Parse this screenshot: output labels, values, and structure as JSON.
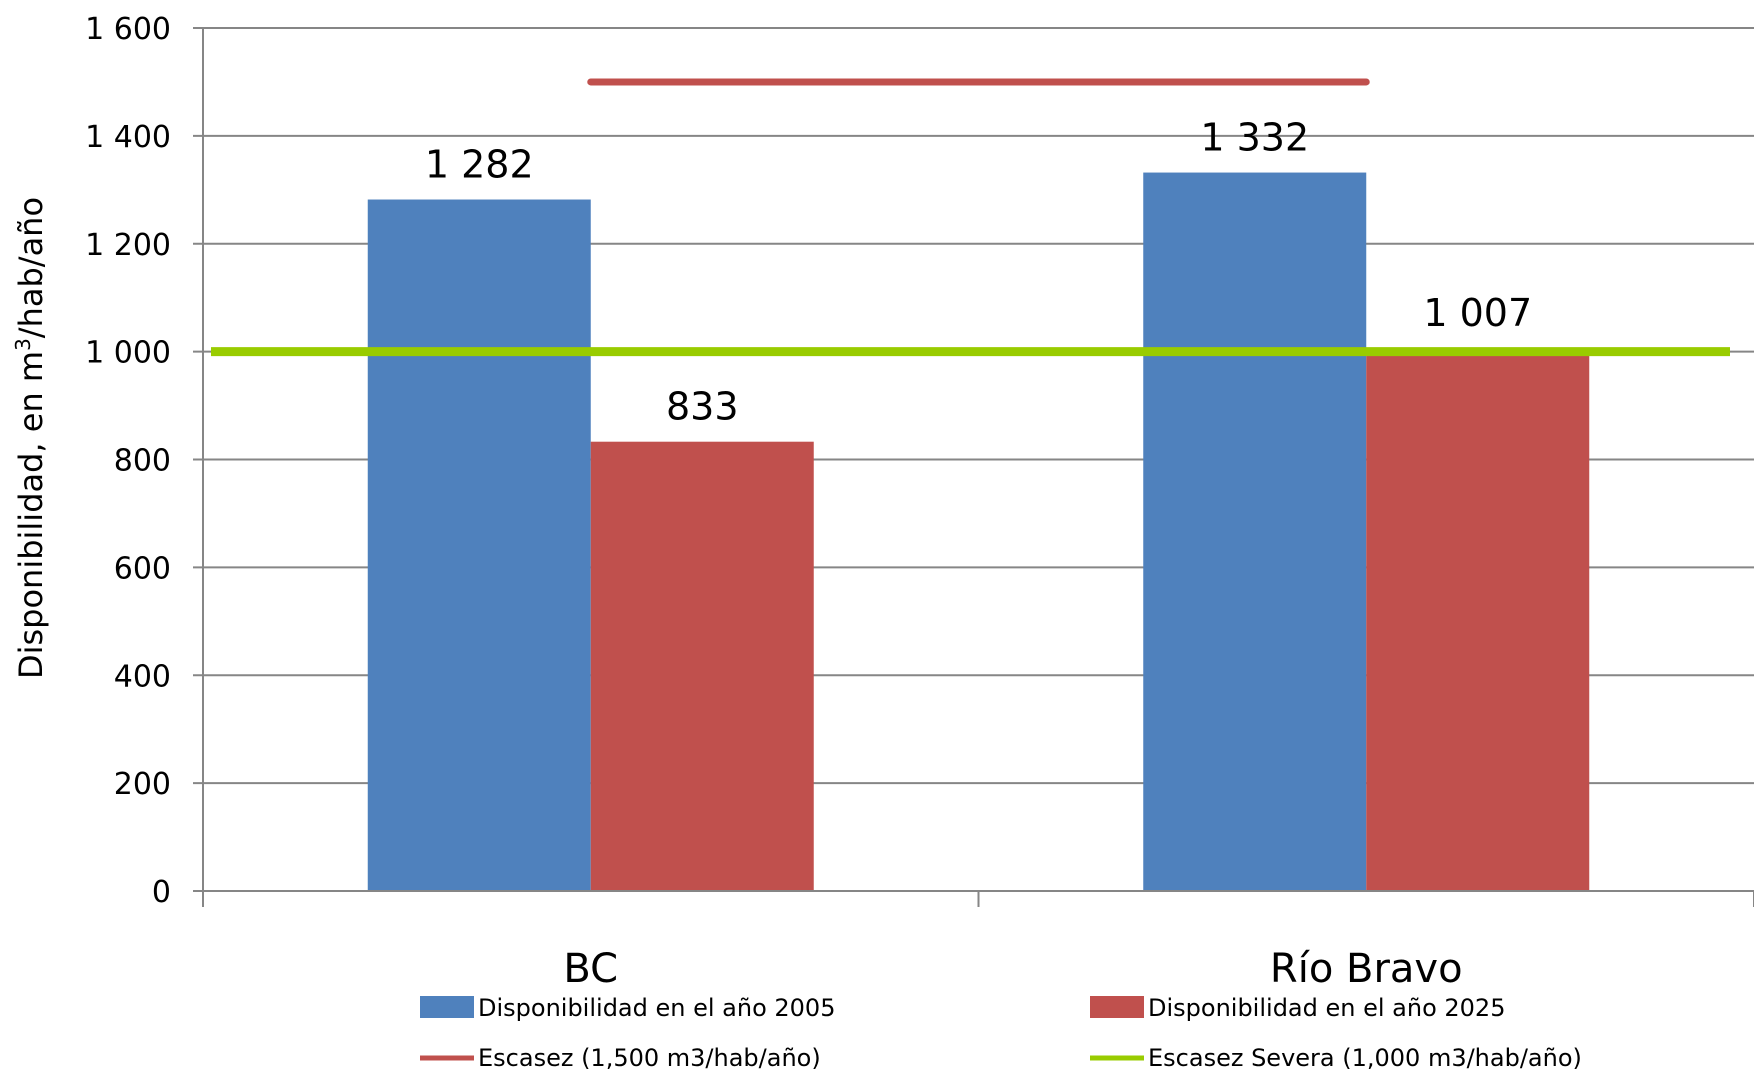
{
  "chart_data": {
    "type": "bar",
    "categories": [
      "BC",
      "Río Bravo"
    ],
    "series": [
      {
        "name": "Disponibilidad en el año 2005",
        "values": [
          1282,
          1332
        ],
        "color": "#4f81bd"
      },
      {
        "name": "Disponibilidad en el año 2025",
        "values": [
          833,
          1007
        ],
        "color": "#c0504d"
      }
    ],
    "data_labels": [
      [
        "1 282",
        "1 332"
      ],
      [
        "833",
        "1 007"
      ]
    ],
    "reference_lines": [
      {
        "name": "Escasez (1,500 m3/hab/año)",
        "value": 1500,
        "color": "#c0504d"
      },
      {
        "name": "Escasez Severa (1,000 m3/hab/año)",
        "value": 1000,
        "color": "#99cc00"
      }
    ],
    "ylabel_main": "Disponibilidad, en m",
    "ylabel_sup": "3",
    "ylabel_tail": "/hab/año",
    "ylim": [
      0,
      1600
    ],
    "yticks": [
      0,
      200,
      400,
      600,
      800,
      1000,
      1200,
      1400,
      1600
    ],
    "ytick_labels": [
      "0",
      "200",
      "400",
      "600",
      "800",
      "1 000",
      "1 200",
      "1 400",
      "1 600"
    ],
    "grid": true,
    "legend_position": "bottom"
  }
}
